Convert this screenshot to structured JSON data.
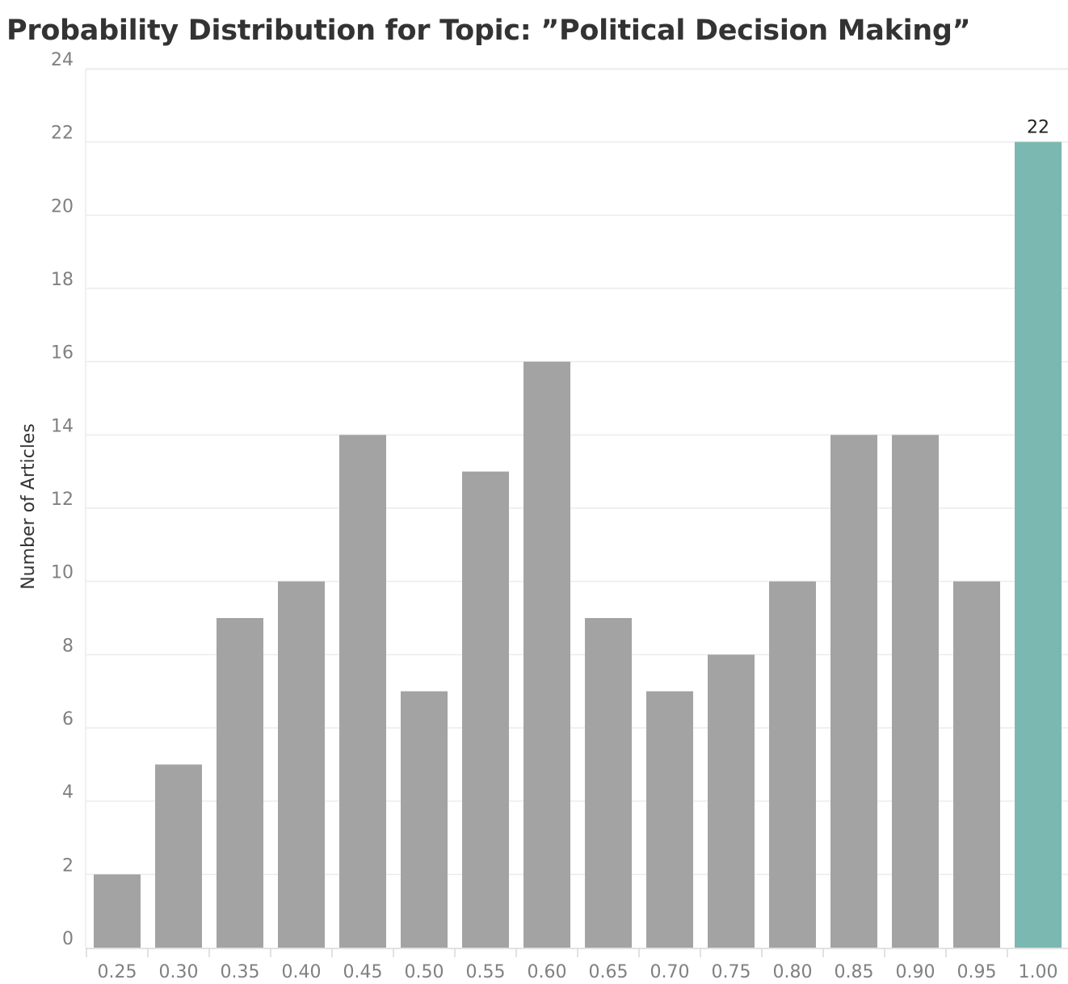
{
  "chart_data": {
    "type": "bar",
    "title": "Probability Distribution for Topic: ”Political Decision Making”",
    "xlabel": "",
    "ylabel": "Number of Articles",
    "categories": [
      "0.25",
      "0.30",
      "0.35",
      "0.40",
      "0.45",
      "0.50",
      "0.55",
      "0.60",
      "0.65",
      "0.70",
      "0.75",
      "0.80",
      "0.85",
      "0.90",
      "0.95",
      "1.00"
    ],
    "values": [
      2,
      5,
      9,
      10,
      14,
      7,
      13,
      16,
      9,
      7,
      8,
      10,
      14,
      14,
      10,
      22
    ],
    "ylim": [
      0,
      24
    ],
    "yticks": [
      "0",
      "2",
      "4",
      "6",
      "8",
      "10",
      "12",
      "14",
      "16",
      "18",
      "20",
      "22",
      "24"
    ],
    "highlight_category": "1.00",
    "data_labels": [
      {
        "category": "1.00",
        "text": "22"
      }
    ],
    "grid": true,
    "colors": {
      "bar": "#a3a3a3",
      "highlight": "#7bb8b1",
      "grid": "#ececec",
      "axis": "#d9d9d9",
      "title": "#333333",
      "tick": "#808080"
    }
  }
}
